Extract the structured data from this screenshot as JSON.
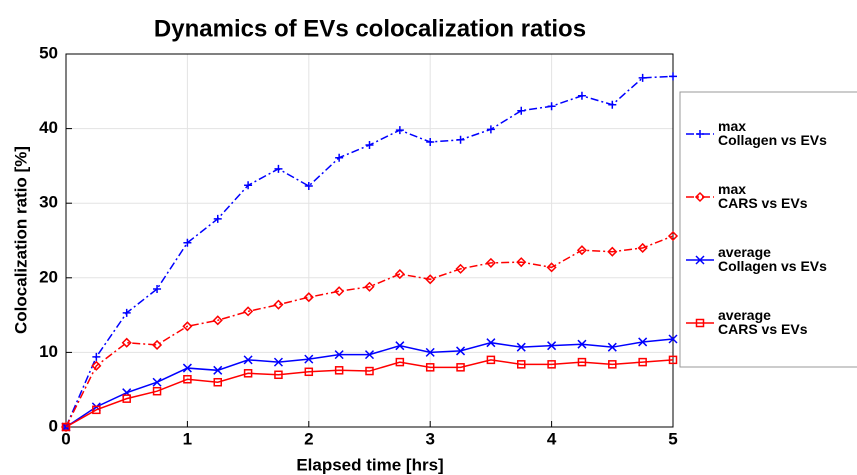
{
  "chart_data": {
    "type": "line",
    "title": "Dynamics of EVs colocalization ratios",
    "x_label": "Elapsed time [hrs]",
    "y_label": "Colocalization ratio [%]",
    "x": [
      0,
      0.25,
      0.5,
      0.75,
      1,
      1.25,
      1.5,
      1.75,
      2,
      2.25,
      2.5,
      2.75,
      3,
      3.25,
      3.5,
      3.75,
      4,
      4.25,
      4.5,
      4.75,
      5
    ],
    "series": [
      {
        "name": "max\nCollagen vs EVs",
        "color": "#0000ff",
        "line_style": "dashdot",
        "marker": "plus",
        "values": [
          0,
          9.4,
          15.3,
          18.5,
          24.7,
          27.9,
          32.4,
          34.6,
          32.3,
          36.1,
          37.8,
          39.8,
          38.2,
          38.5,
          39.9,
          42.4,
          43.0,
          44.4,
          43.2,
          46.8,
          47.0
        ]
      },
      {
        "name": "max\nCARS vs EVs",
        "color": "#ff0000",
        "line_style": "dashdot",
        "marker": "diamond",
        "values": [
          0,
          8.2,
          11.3,
          11.0,
          13.5,
          14.3,
          15.5,
          16.4,
          17.4,
          18.2,
          18.8,
          20.5,
          19.8,
          21.2,
          22.0,
          22.1,
          21.4,
          23.7,
          23.5,
          24.0,
          25.6
        ]
      },
      {
        "name": "average\nCollagen vs EVs",
        "color": "#0000ff",
        "line_style": "solid",
        "marker": "cross",
        "values": [
          0,
          2.7,
          4.6,
          6.0,
          7.9,
          7.6,
          9.0,
          8.7,
          9.1,
          9.7,
          9.7,
          10.9,
          10.0,
          10.2,
          11.3,
          10.7,
          10.9,
          11.1,
          10.7,
          11.4,
          11.8
        ]
      },
      {
        "name": "average\nCARS vs EVs",
        "color": "#ff0000",
        "line_style": "solid",
        "marker": "square",
        "values": [
          0,
          2.3,
          3.8,
          4.8,
          6.4,
          6.0,
          7.2,
          7.0,
          7.4,
          7.6,
          7.5,
          8.7,
          8.0,
          8.0,
          9.0,
          8.4,
          8.4,
          8.7,
          8.4,
          8.7,
          9.0
        ]
      }
    ],
    "xlim": [
      0,
      5
    ],
    "xticks": [
      0,
      1,
      2,
      3,
      4,
      5
    ],
    "ylim": [
      0,
      50
    ],
    "yticks": [
      0,
      10,
      20,
      30,
      40,
      50
    ],
    "grid": true,
    "legend_position": "outside-right"
  }
}
